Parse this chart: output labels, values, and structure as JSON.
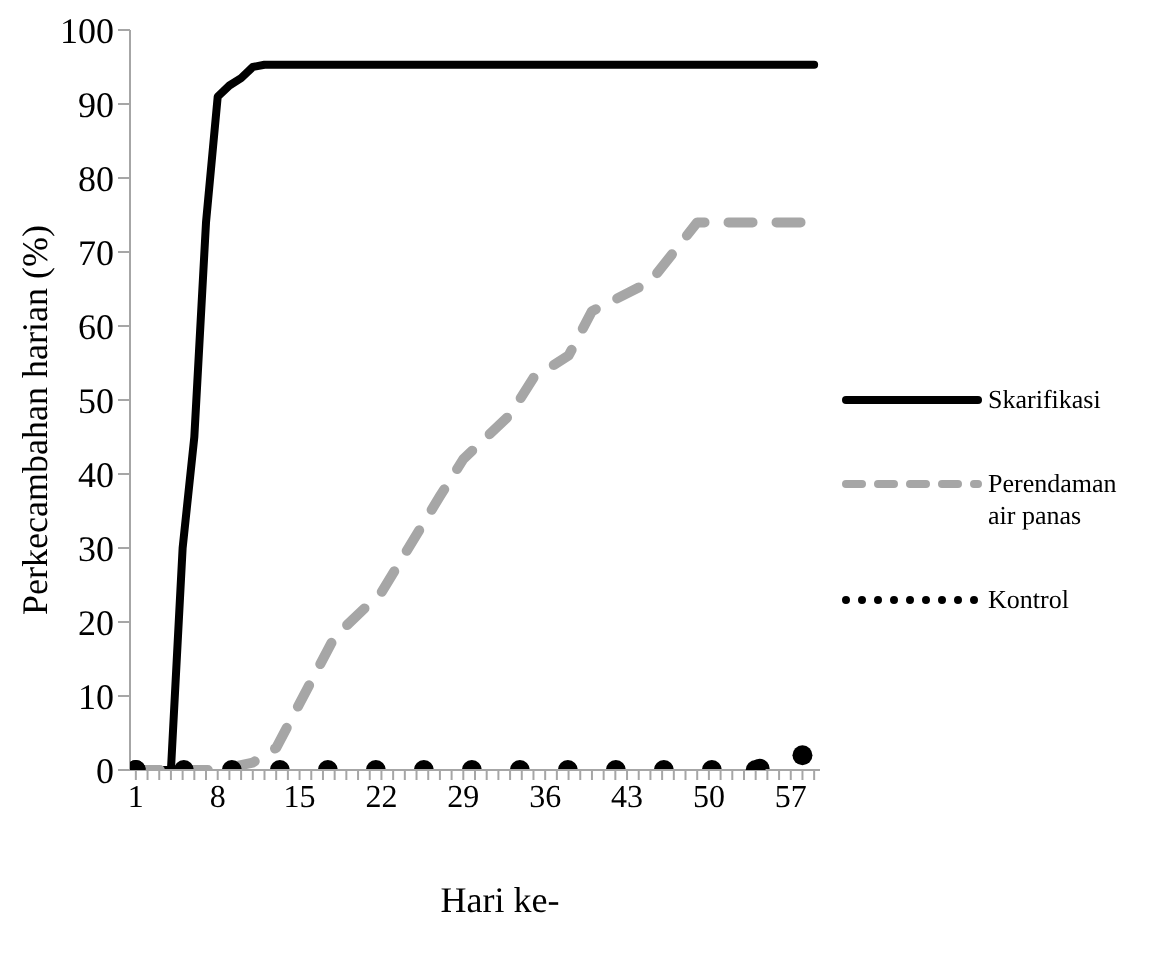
{
  "chart_data": {
    "type": "line",
    "xlabel": "Hari ke-",
    "ylabel": "Perkecambahan harian (%)",
    "xlim": [
      0.5,
      59.5
    ],
    "ylim": [
      0,
      100
    ],
    "xticks": [
      1,
      {
        "value": 2,
        "label": null
      },
      {
        "value": 3,
        "label": null
      },
      {
        "value": 4,
        "label": null
      },
      {
        "value": 5,
        "label": null
      },
      {
        "value": 6,
        "label": null
      },
      {
        "value": 7,
        "label": null
      },
      8,
      {
        "value": 9,
        "label": null
      },
      {
        "value": 10,
        "label": null
      },
      {
        "value": 11,
        "label": null
      },
      {
        "value": 12,
        "label": null
      },
      {
        "value": 13,
        "label": null
      },
      {
        "value": 14,
        "label": null
      },
      15,
      {
        "value": 16,
        "label": null
      },
      {
        "value": 17,
        "label": null
      },
      {
        "value": 18,
        "label": null
      },
      {
        "value": 19,
        "label": null
      },
      {
        "value": 20,
        "label": null
      },
      {
        "value": 21,
        "label": null
      },
      22,
      {
        "value": 23,
        "label": null
      },
      {
        "value": 24,
        "label": null
      },
      {
        "value": 25,
        "label": null
      },
      {
        "value": 26,
        "label": null
      },
      {
        "value": 27,
        "label": null
      },
      {
        "value": 28,
        "label": null
      },
      29,
      {
        "value": 30,
        "label": null
      },
      {
        "value": 31,
        "label": null
      },
      {
        "value": 32,
        "label": null
      },
      {
        "value": 33,
        "label": null
      },
      {
        "value": 34,
        "label": null
      },
      {
        "value": 35,
        "label": null
      },
      36,
      {
        "value": 37,
        "label": null
      },
      {
        "value": 38,
        "label": null
      },
      {
        "value": 39,
        "label": null
      },
      {
        "value": 40,
        "label": null
      },
      {
        "value": 41,
        "label": null
      },
      {
        "value": 42,
        "label": null
      },
      43,
      {
        "value": 44,
        "label": null
      },
      {
        "value": 45,
        "label": null
      },
      {
        "value": 46,
        "label": null
      },
      {
        "value": 47,
        "label": null
      },
      {
        "value": 48,
        "label": null
      },
      {
        "value": 49,
        "label": null
      },
      50,
      {
        "value": 51,
        "label": null
      },
      {
        "value": 52,
        "label": null
      },
      {
        "value": 53,
        "label": null
      },
      {
        "value": 54,
        "label": null
      },
      {
        "value": 55,
        "label": null
      },
      {
        "value": 56,
        "label": null
      },
      57,
      {
        "value": 58,
        "label": null
      },
      {
        "value": 59,
        "label": null
      }
    ],
    "yticks": [
      0,
      10,
      20,
      30,
      40,
      50,
      60,
      70,
      80,
      90,
      100
    ],
    "grid": false,
    "legend": "right",
    "series": [
      {
        "name": "Skarifikasi",
        "color": "#000000",
        "line_style": "solid",
        "x": [
          1,
          4,
          5,
          6,
          7,
          8,
          9,
          10,
          11,
          12,
          59
        ],
        "values": [
          0,
          0,
          30,
          45,
          74,
          91,
          92.5,
          93.5,
          95,
          95.3,
          95.3
        ]
      },
      {
        "name": "Perendaman air panas",
        "color": "#a6a6a6",
        "line_style": "dashed",
        "x": [
          1,
          8,
          11,
          13,
          16,
          18,
          22,
          27,
          29,
          33,
          35,
          38,
          40,
          45,
          49,
          59
        ],
        "values": [
          0,
          0,
          1,
          3,
          12,
          18,
          24,
          37,
          42,
          48,
          53,
          56,
          62,
          66,
          74,
          74
        ]
      },
      {
        "name": "Kontrol",
        "color": "#000000",
        "line_style": "dotted",
        "marker": "circle",
        "x": [
          1,
          54,
          58
        ],
        "values": [
          0,
          0,
          2
        ]
      }
    ]
  }
}
